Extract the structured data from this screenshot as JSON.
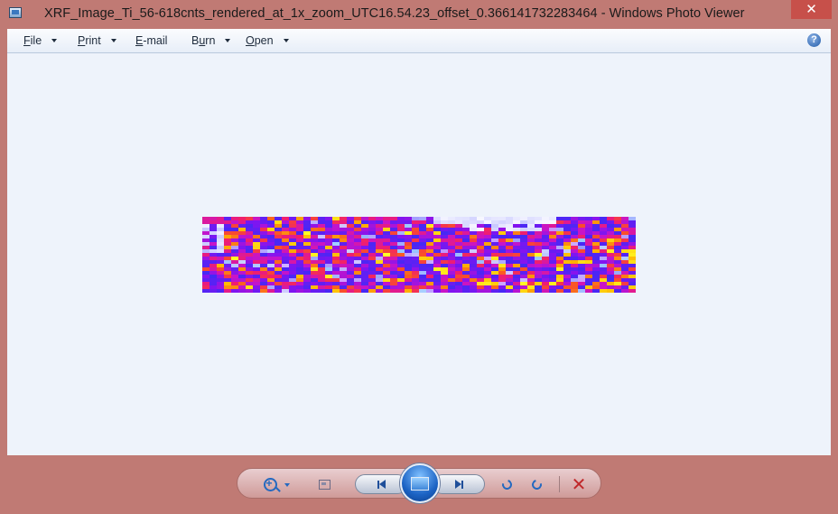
{
  "window": {
    "title": "XRF_Image_Ti_56-618cnts_rendered_at_1x_zoom_UTC16.54.23_offset_0.366141732283464 - Windows Photo Viewer",
    "close_symbol": "✕"
  },
  "menubar": {
    "items": [
      {
        "underline": "F",
        "rest": "ile"
      },
      {
        "underline": "P",
        "rest": "rint"
      },
      {
        "underline": "E",
        "rest": "-mail"
      },
      {
        "prefix": "B",
        "underline": "u",
        "rest": "rn"
      },
      {
        "underline": "O",
        "rest": "pen"
      }
    ],
    "help_symbol": "?"
  },
  "controls": {
    "delete_symbol": "✕"
  },
  "icons": {
    "app": "photo-viewer-icon",
    "help": "help-icon",
    "zoom": "zoom-icon",
    "fit": "actual-size-icon",
    "prev": "previous-icon",
    "slideshow": "slideshow-icon",
    "next": "next-icon",
    "rotate_ccw": "rotate-counterclockwise-icon",
    "rotate_cw": "rotate-clockwise-icon",
    "delete": "delete-icon"
  },
  "colors": {
    "frame": "#c07a74",
    "viewer_bg": "#eef3fb",
    "close_button": "#c7504a",
    "accent": "#2469c0",
    "delete": "#c0282a"
  }
}
